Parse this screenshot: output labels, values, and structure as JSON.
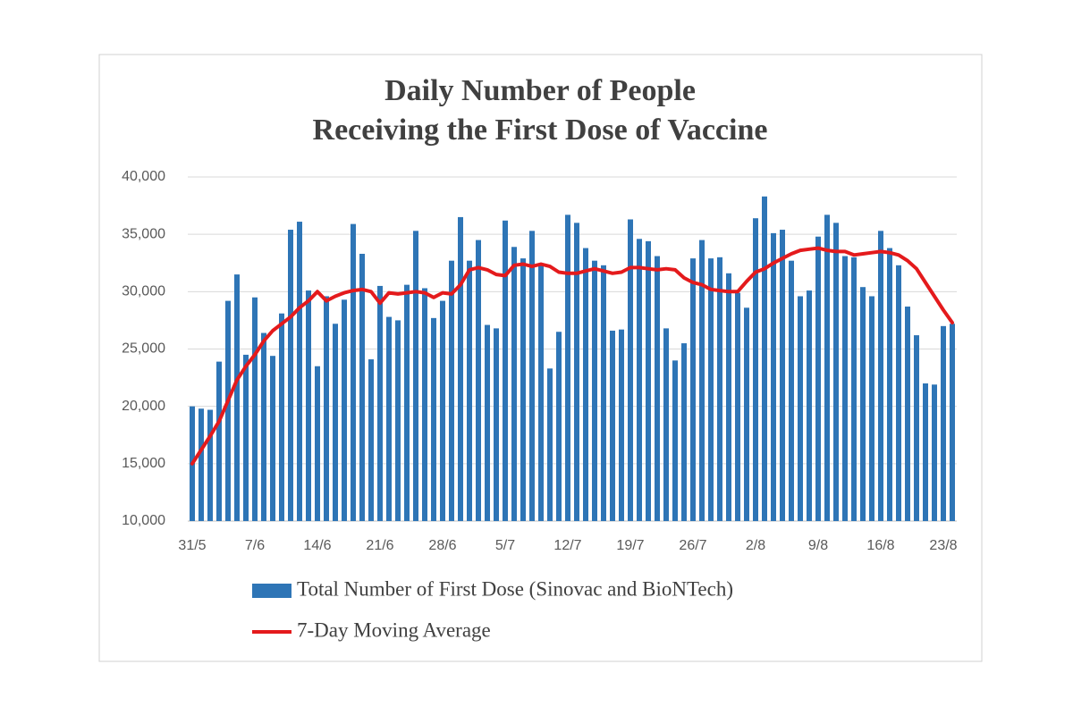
{
  "chart_data": {
    "type": "bar",
    "title": [
      "Daily Number of People",
      "Receiving the First Dose of Vaccine"
    ],
    "categories": [
      "31/5",
      null,
      null,
      null,
      null,
      null,
      null,
      "7/6",
      null,
      null,
      null,
      null,
      null,
      null,
      "14/6",
      null,
      null,
      null,
      null,
      null,
      null,
      "21/6",
      null,
      null,
      null,
      null,
      null,
      null,
      "28/6",
      null,
      null,
      null,
      null,
      null,
      null,
      "5/7",
      null,
      null,
      null,
      null,
      null,
      null,
      "12/7",
      null,
      null,
      null,
      null,
      null,
      null,
      "19/7",
      null,
      null,
      null,
      null,
      null,
      null,
      "26/7",
      null,
      null,
      null,
      null,
      null,
      null,
      "2/8",
      null,
      null,
      null,
      null,
      null,
      null,
      "9/8",
      null,
      null,
      null,
      null,
      null,
      null,
      "16/8",
      null,
      null,
      null,
      null,
      null,
      null,
      "23/8",
      null
    ],
    "series": [
      {
        "name": "Total Number of First Dose (Sinovac and BioNTech)",
        "type": "bar",
        "color": "#2e75b6",
        "values": [
          20000,
          19800,
          19700,
          23900,
          29200,
          31500,
          24500,
          29500,
          26400,
          24400,
          28100,
          35400,
          36100,
          30100,
          23500,
          29600,
          27200,
          29300,
          35900,
          33300,
          24100,
          30500,
          27800,
          27500,
          30600,
          35300,
          30300,
          27700,
          29200,
          32700,
          36500,
          32700,
          34500,
          27100,
          26800,
          36200,
          33900,
          32900,
          35300,
          32300,
          23300,
          26500,
          36700,
          36000,
          33800,
          32700,
          32300,
          26600,
          26700,
          36300,
          34600,
          34400,
          33100,
          26800,
          24000,
          25500,
          32900,
          34500,
          32900,
          33000,
          31600,
          29900,
          28600,
          36400,
          38300,
          35100,
          35400,
          32700,
          29600,
          30100,
          34800,
          36700,
          36000,
          33100,
          33000,
          30400,
          29600,
          35300,
          33800,
          32300,
          28700,
          26200,
          22000,
          21900,
          27000,
          27200
        ]
      },
      {
        "name": "7-Day Moving Average",
        "type": "line",
        "color": "#e41a1c",
        "values": [
          15000,
          16200,
          17400,
          18700,
          20500,
          22300,
          23500,
          24500,
          25700,
          26600,
          27200,
          27800,
          28600,
          29200,
          30000,
          29200,
          29600,
          29900,
          30100,
          30200,
          30000,
          29000,
          29900,
          29800,
          29900,
          30000,
          29900,
          29500,
          29900,
          29800,
          30600,
          31900,
          32100,
          31900,
          31500,
          31400,
          32300,
          32400,
          32200,
          32400,
          32200,
          31700,
          31600,
          31600,
          31800,
          32000,
          31800,
          31600,
          31700,
          32100,
          32100,
          32000,
          31900,
          32000,
          31900,
          31200,
          30800,
          30600,
          30200,
          30100,
          30000,
          30000,
          30900,
          31700,
          32000,
          32500,
          32900,
          33300,
          33600,
          33700,
          33800,
          33600,
          33500,
          33500,
          33200,
          33300,
          33400,
          33500,
          33400,
          33200,
          32700,
          32000,
          30800,
          29600,
          28400,
          27300
        ]
      }
    ],
    "ylim": [
      10000,
      40000
    ],
    "yticks": [
      {
        "value": 10000,
        "label": "10,000"
      },
      {
        "value": 15000,
        "label": "15,000"
      },
      {
        "value": 20000,
        "label": "20,000"
      },
      {
        "value": 25000,
        "label": "25,000"
      },
      {
        "value": 30000,
        "label": "30,000"
      },
      {
        "value": 35000,
        "label": "35,000"
      },
      {
        "value": 40000,
        "label": "40,000"
      }
    ],
    "grid": true
  }
}
